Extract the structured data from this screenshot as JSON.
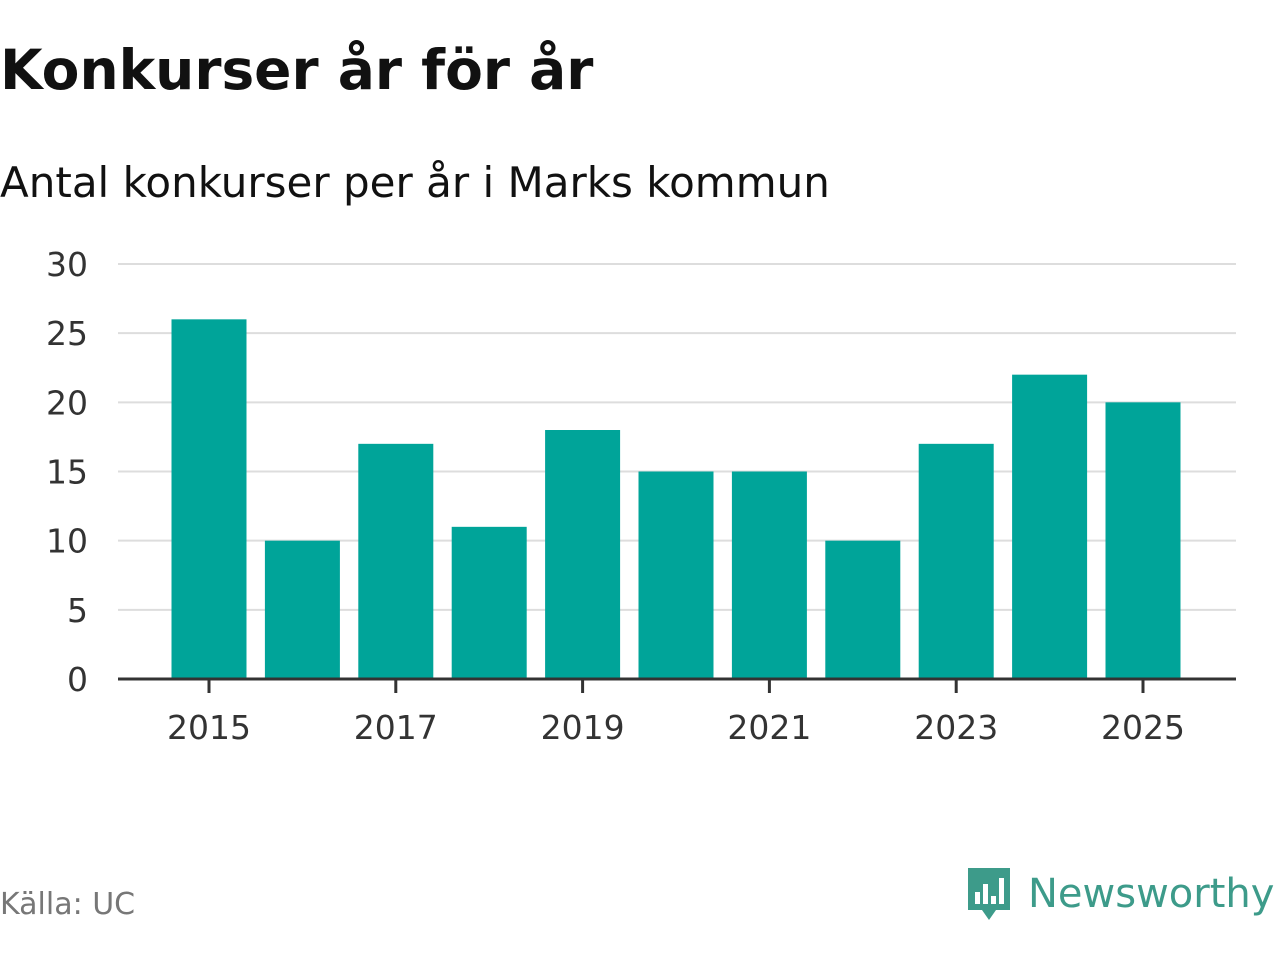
{
  "header": {
    "title": "Konkurser år för år",
    "subtitle": "Antal konkurser per år i Marks kommun"
  },
  "footer": {
    "source": "Källa: UC",
    "brand": "Newsworthy",
    "brand_icon": "newsworthy-logo-icon"
  },
  "colors": {
    "bar": "#00a499",
    "grid": "#dddddd",
    "axis": "#333333",
    "tick_text": "#333333",
    "brand": "#3d9b8a"
  },
  "chart_data": {
    "type": "bar",
    "title": "Konkurser år för år",
    "subtitle": "Antal konkurser per år i Marks kommun",
    "xlabel": "",
    "ylabel": "",
    "categories": [
      "2015",
      "2016",
      "2017",
      "2018",
      "2019",
      "2020",
      "2021",
      "2022",
      "2023",
      "2024",
      "2025"
    ],
    "values": [
      26,
      10,
      17,
      11,
      18,
      15,
      15,
      10,
      17,
      22,
      20
    ],
    "x_tick_labels": [
      "2015",
      "2017",
      "2019",
      "2021",
      "2023",
      "2025"
    ],
    "y_ticks": [
      0,
      5,
      10,
      15,
      20,
      25,
      30
    ],
    "ylim": [
      0,
      30
    ],
    "grid": true,
    "legend": "none"
  }
}
